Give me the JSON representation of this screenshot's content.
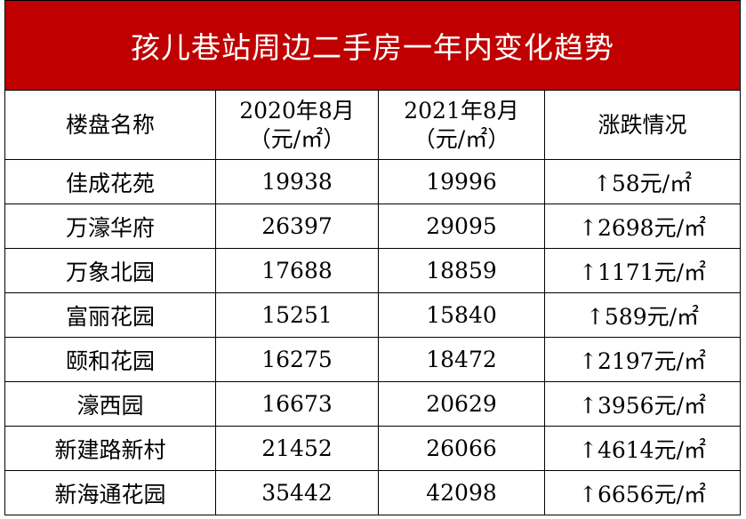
{
  "title": "孩儿巷站周边二手房一年内变化趋势",
  "table": {
    "header": [
      "楼盘名称",
      "2020年8月\n（元/㎡）",
      "2021年8月\n（元/㎡）",
      "涨跌情况"
    ],
    "rows": [
      [
        "佳成花苑",
        19938,
        19996,
        "↑58元/㎡"
      ],
      [
        "万濠华府",
        26397,
        29095,
        "↑2698元/㎡"
      ],
      [
        "万象北园",
        17688,
        18859,
        "↑1171元/㎡"
      ],
      [
        "富丽花园",
        15251,
        15840,
        "↑589元/㎡"
      ],
      [
        "颐和花园",
        16275,
        18472,
        "↑2197元/㎡"
      ],
      [
        "濠西园",
        16673,
        20629,
        "↑3956元/㎡"
      ],
      [
        "新建路新村",
        21452,
        26066,
        "↑4614元/㎡"
      ],
      [
        "新海通花园",
        35442,
        42098,
        "↑6656元/㎡"
      ]
    ]
  }
}
